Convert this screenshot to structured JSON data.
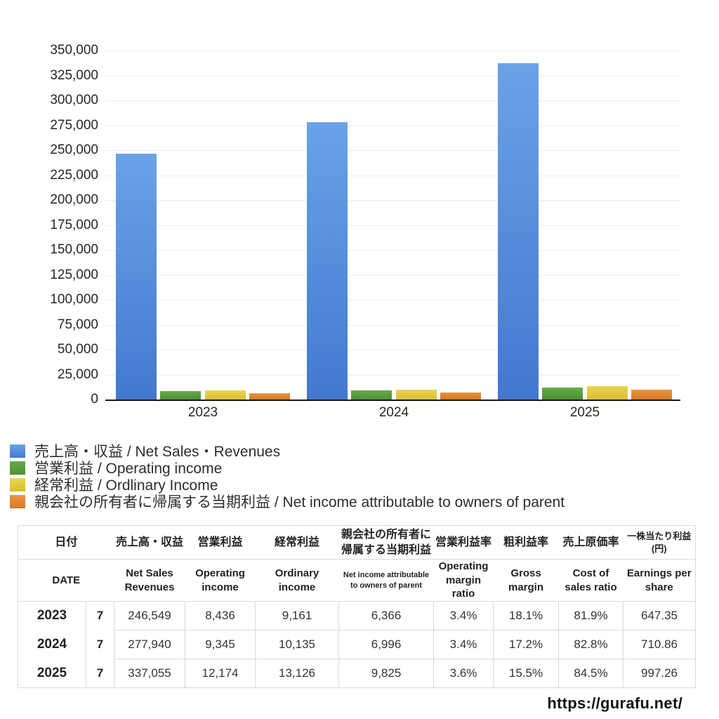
{
  "chart_data": {
    "type": "bar",
    "categories": [
      "2023",
      "2024",
      "2025"
    ],
    "series": [
      {
        "slug": "net-sales",
        "name": "売上高・収益 / Net Sales・Revenues",
        "color_top": "#6ba2e8",
        "color_bottom": "#4478cf",
        "values": [
          246549,
          277940,
          337055
        ]
      },
      {
        "slug": "operating-income",
        "name": "営業利益 / Operating income",
        "color_top": "#66ab48",
        "color_bottom": "#4c9135",
        "values": [
          8436,
          9345,
          12174
        ]
      },
      {
        "slug": "ordinary-income",
        "name": "経常利益 / Ordlinary Income",
        "color_top": "#ecd450",
        "color_bottom": "#d9bd35",
        "values": [
          9161,
          10135,
          13126
        ]
      },
      {
        "slug": "net-income",
        "name": "親会社の所有者に帰属する当期利益 / Net income attributable to owners of parent",
        "color_top": "#eb9440",
        "color_bottom": "#d37a25",
        "values": [
          6366,
          6996,
          9825
        ]
      }
    ],
    "title": "",
    "xlabel": "",
    "ylabel": "",
    "ylim": [
      0,
      350000
    ],
    "ytick_step": 25000,
    "grid": true,
    "legend_position": "below-left"
  },
  "table": {
    "columns": [
      {
        "jp": "日付",
        "en": "DATE"
      },
      {
        "jp": "売上高・収益",
        "en": "Net Sales Revenues"
      },
      {
        "jp": "営業利益",
        "en": "Operating income"
      },
      {
        "jp": "経常利益",
        "en": "Ordinary income"
      },
      {
        "jp": "親会社の所有者に帰属する当期利益",
        "en": "Net income attributable to owners of parent"
      },
      {
        "jp": "営業利益率",
        "en": "Operating margin ratio"
      },
      {
        "jp": "粗利益率",
        "en": "Gross margin"
      },
      {
        "jp": "売上原価率",
        "en": "Cost of sales ratio"
      },
      {
        "jp": "一株当たり利益(円)",
        "en": "Earnings per share"
      }
    ],
    "rows": [
      {
        "year": "2023",
        "month": "7",
        "values": [
          "246,549",
          "8,436",
          "9,161",
          "6,366",
          "3.4%",
          "18.1%",
          "81.9%",
          "647.35"
        ]
      },
      {
        "year": "2024",
        "month": "7",
        "values": [
          "277,940",
          "9,345",
          "10,135",
          "6,996",
          "3.4%",
          "17.2%",
          "82.8%",
          "710.86"
        ]
      },
      {
        "year": "2025",
        "month": "7",
        "values": [
          "337,055",
          "12,174",
          "13,126",
          "9,825",
          "3.6%",
          "15.5%",
          "84.5%",
          "997.26"
        ]
      }
    ]
  },
  "footer": {
    "url": "https://gurafu.net/"
  }
}
